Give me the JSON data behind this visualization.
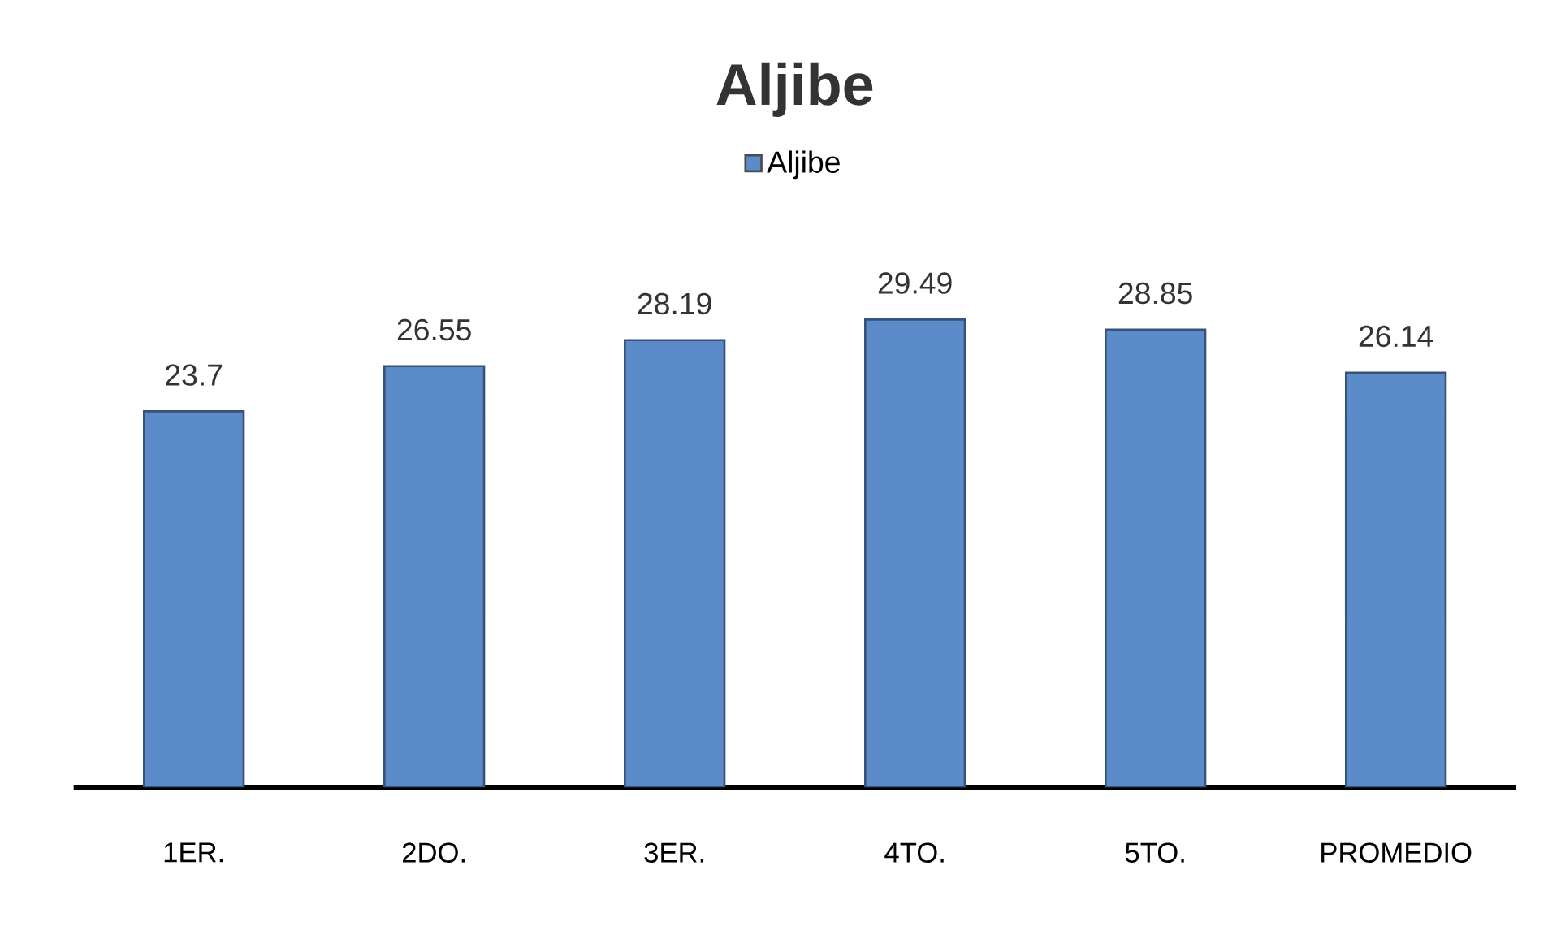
{
  "chart_data": {
    "type": "bar",
    "title": "Aljibe",
    "categories": [
      "1ER.",
      "2DO.",
      "3ER.",
      "4TO.",
      "5TO.",
      "PROMEDIO"
    ],
    "series": [
      {
        "name": "Aljibe",
        "color": "#5b8bc9",
        "values": [
          23.7,
          26.55,
          28.19,
          29.49,
          28.85,
          26.14
        ]
      }
    ],
    "data_labels": true,
    "legend": "top"
  }
}
